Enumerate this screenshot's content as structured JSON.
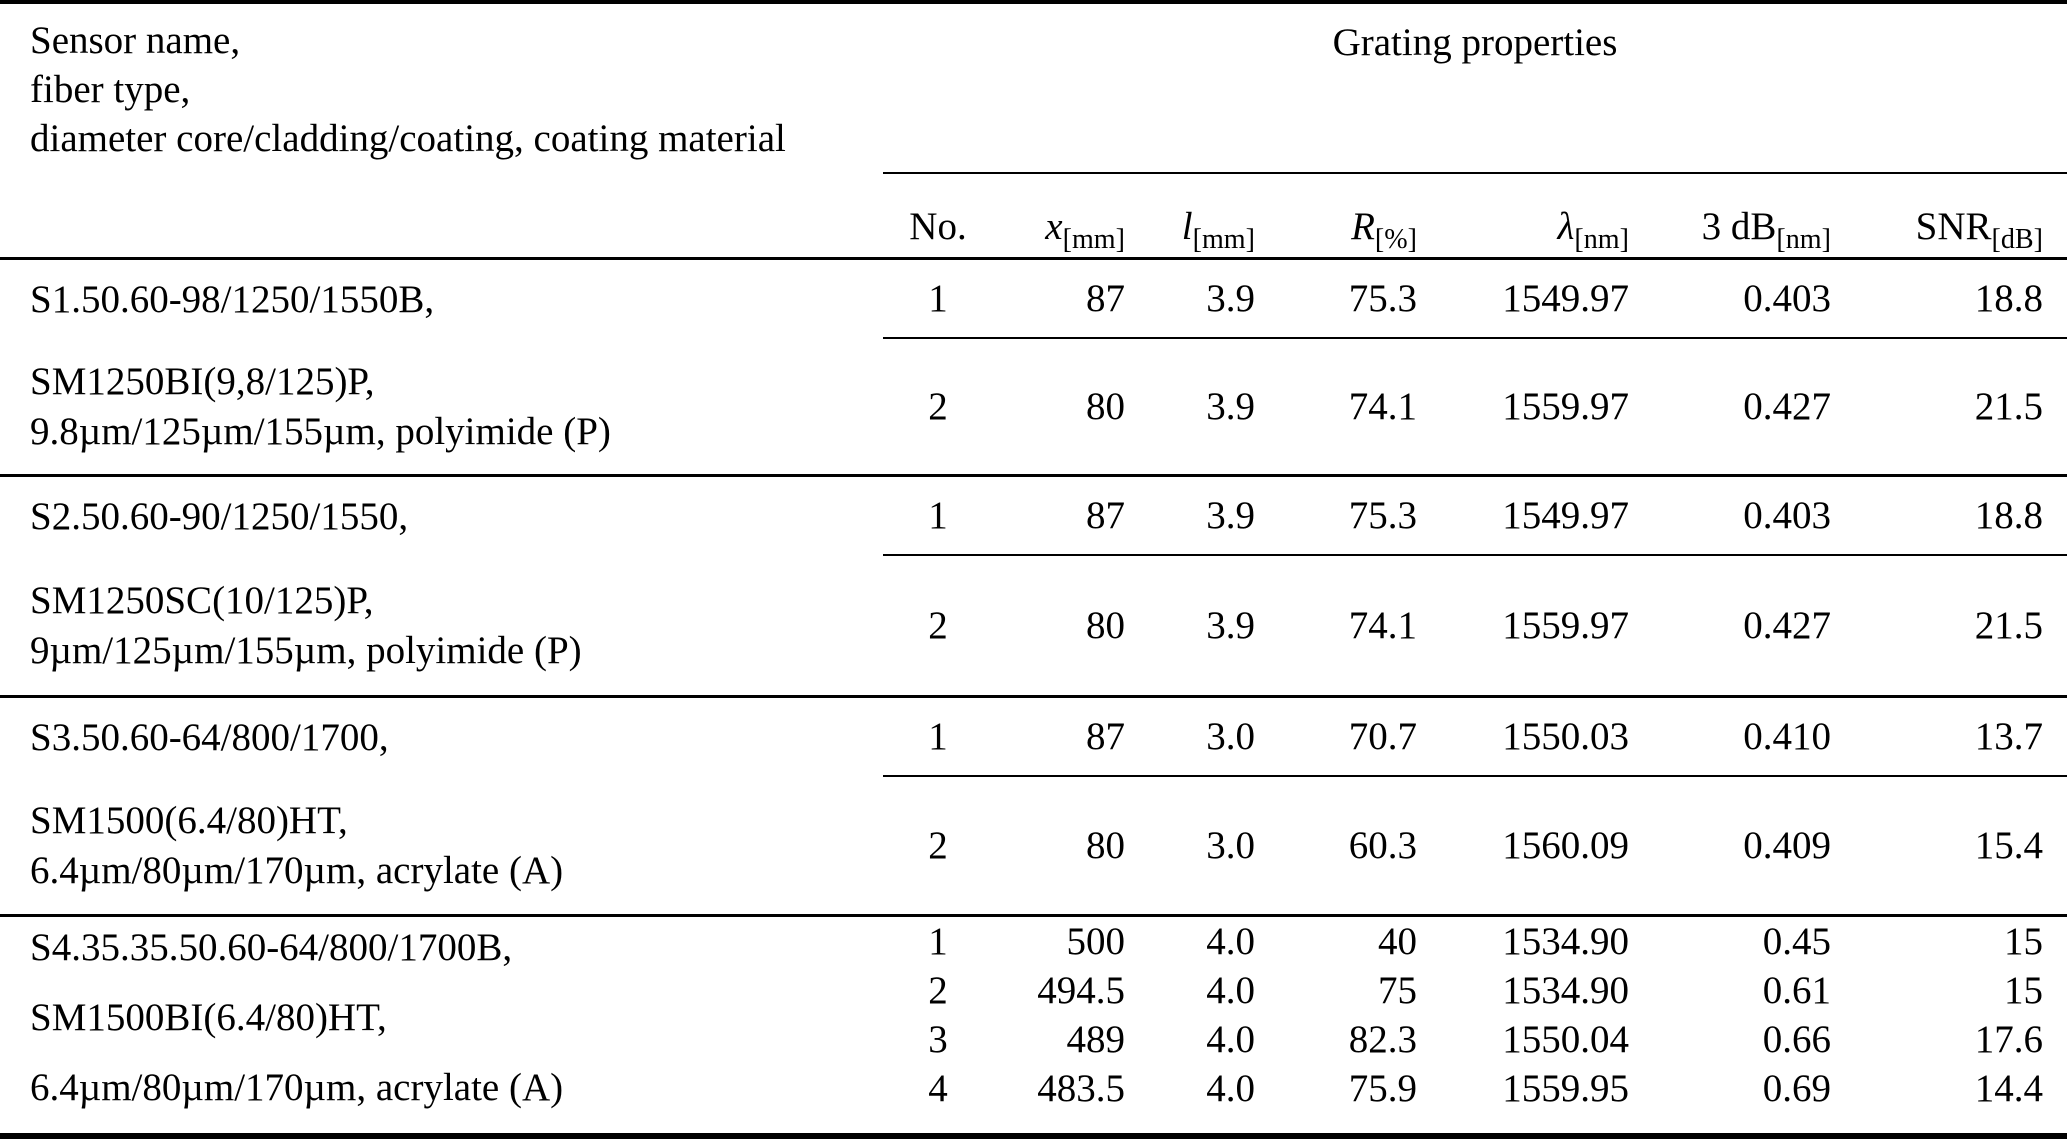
{
  "header": {
    "left_lines": [
      "Sensor name,",
      "fiber type,",
      "diameter core/cladding/coating, coating material"
    ],
    "group_title": "Grating properties",
    "columns": [
      {
        "name": "No.",
        "unit": ""
      },
      {
        "name": "x",
        "unit": "[mm]"
      },
      {
        "name": "l",
        "unit": "[mm]"
      },
      {
        "name": "R",
        "unit": "[%]"
      },
      {
        "name": "λ",
        "unit": "[nm]"
      },
      {
        "name": "3 dB",
        "unit": "[nm]"
      },
      {
        "name": "SNR",
        "unit": "[dB]"
      }
    ]
  },
  "blocks": [
    {
      "sensor_line1": "S1.50.60-98/1250/1550B,",
      "sensor_line2": "SM1250BI(9,8/125)P,",
      "sensor_line3": "9.8µm/125µm/155µm, polyimide (P)",
      "rows": [
        {
          "no": "1",
          "x": "87",
          "l": "3.9",
          "R": "75.3",
          "lambda": "1549.97",
          "dB3": "0.403",
          "SNR": "18.8"
        },
        {
          "no": "2",
          "x": "80",
          "l": "3.9",
          "R": "74.1",
          "lambda": "1559.97",
          "dB3": "0.427",
          "SNR": "21.5"
        }
      ]
    },
    {
      "sensor_line1": "S2.50.60-90/1250/1550,",
      "sensor_line2": "SM1250SC(10/125)P,",
      "sensor_line3": "9µm/125µm/155µm, polyimide (P)",
      "rows": [
        {
          "no": "1",
          "x": "87",
          "l": "3.9",
          "R": "75.3",
          "lambda": "1549.97",
          "dB3": "0.403",
          "SNR": "18.8"
        },
        {
          "no": "2",
          "x": "80",
          "l": "3.9",
          "R": "74.1",
          "lambda": "1559.97",
          "dB3": "0.427",
          "SNR": "21.5"
        }
      ]
    },
    {
      "sensor_line1": "S3.50.60-64/800/1700,",
      "sensor_line2": "SM1500(6.4/80)HT,",
      "sensor_line3": "6.4µm/80µm/170µm, acrylate (A)",
      "rows": [
        {
          "no": "1",
          "x": "87",
          "l": "3.0",
          "R": "70.7",
          "lambda": "1550.03",
          "dB3": "0.410",
          "SNR": "13.7"
        },
        {
          "no": "2",
          "x": "80",
          "l": "3.0",
          "R": "60.3",
          "lambda": "1560.09",
          "dB3": "0.409",
          "SNR": "15.4"
        }
      ]
    },
    {
      "sensor_line1": "S4.35.35.50.60-64/800/1700B,",
      "sensor_line2": "SM1500BI(6.4/80)HT,",
      "sensor_line3": "6.4µm/80µm/170µm, acrylate (A)",
      "rows": [
        {
          "no": "1",
          "x": "500",
          "l": "4.0",
          "R": "40",
          "lambda": "1534.90",
          "dB3": "0.45",
          "SNR": "15"
        },
        {
          "no": "2",
          "x": "494.5",
          "l": "4.0",
          "R": "75",
          "lambda": "1534.90",
          "dB3": "0.61",
          "SNR": "15"
        },
        {
          "no": "3",
          "x": "489",
          "l": "4.0",
          "R": "82.3",
          "lambda": "1550.04",
          "dB3": "0.66",
          "SNR": "17.6"
        },
        {
          "no": "4",
          "x": "483.5",
          "l": "4.0",
          "R": "75.9",
          "lambda": "1559.95",
          "dB3": "0.69",
          "SNR": "14.4"
        }
      ]
    }
  ]
}
